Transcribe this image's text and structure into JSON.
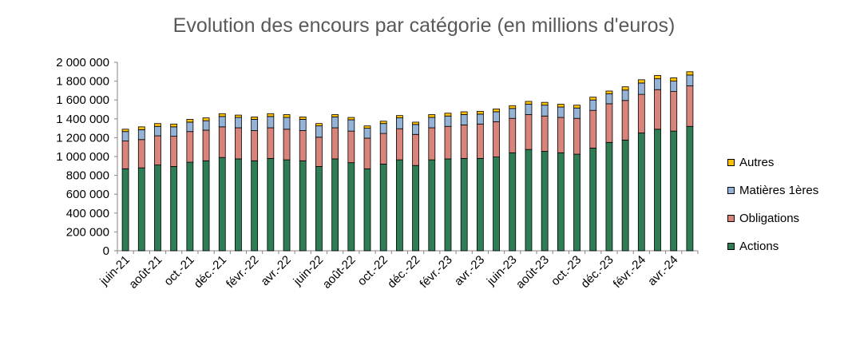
{
  "chart_data": {
    "type": "bar",
    "stacked": true,
    "title": "Evolution des encours par catégorie (en millions d'euros)",
    "xlabel": "",
    "ylabel": "",
    "ylim": [
      0,
      2000000
    ],
    "yticks": [
      "0",
      "200 000",
      "400 000",
      "600 000",
      "800 000",
      "1 000 000",
      "1 200 000",
      "1 400 000",
      "1 600 000",
      "1 800 000",
      "2 000 000"
    ],
    "xtick_labels": [
      "juin-21",
      "août-21",
      "oct.-21",
      "déc.-21",
      "févr.-22",
      "avr.-22",
      "juin-22",
      "août-22",
      "oct.-22",
      "déc.-22",
      "févr.-23",
      "avr.-23",
      "juin-23",
      "août-23",
      "oct.-23",
      "déc.-23",
      "févr.-24",
      "avr.-24"
    ],
    "categories": [
      "juin-21",
      "juil.-21",
      "août-21",
      "sept.-21",
      "oct.-21",
      "nov.-21",
      "déc.-21",
      "janv.-22",
      "févr.-22",
      "mars-22",
      "avr.-22",
      "mai-22",
      "juin-22",
      "juil.-22",
      "août-22",
      "sept.-22",
      "oct.-22",
      "nov.-22",
      "déc.-22",
      "janv.-23",
      "févr.-23",
      "mars-23",
      "avr.-23",
      "mai-23",
      "juin-23",
      "juil.-23",
      "août-23",
      "sept.-23",
      "oct.-23",
      "nov.-23",
      "déc.-23",
      "janv.-24",
      "févr.-24",
      "mars-24",
      "avr.-24",
      "mai-24"
    ],
    "legend_position": "right",
    "grid": false,
    "series": [
      {
        "name": "Actions",
        "color": "#2e7d55",
        "values": [
          870000,
          880000,
          910000,
          895000,
          940000,
          955000,
          990000,
          975000,
          955000,
          980000,
          965000,
          955000,
          895000,
          975000,
          935000,
          870000,
          920000,
          965000,
          905000,
          965000,
          975000,
          980000,
          980000,
          995000,
          1040000,
          1075000,
          1055000,
          1040000,
          1025000,
          1090000,
          1150000,
          1175000,
          1250000,
          1290000,
          1270000,
          1320000
        ]
      },
      {
        "name": "Obligations",
        "color": "#d9847a",
        "values": [
          295000,
          300000,
          310000,
          320000,
          325000,
          325000,
          325000,
          330000,
          320000,
          325000,
          325000,
          320000,
          310000,
          330000,
          335000,
          325000,
          325000,
          330000,
          330000,
          340000,
          345000,
          355000,
          365000,
          375000,
          365000,
          370000,
          375000,
          375000,
          380000,
          400000,
          410000,
          420000,
          410000,
          420000,
          420000,
          430000
        ]
      },
      {
        "name": "Matières 1ères",
        "color": "#95b3d7",
        "values": [
          100000,
          105000,
          100000,
          100000,
          100000,
          100000,
          110000,
          110000,
          120000,
          120000,
          125000,
          120000,
          120000,
          115000,
          120000,
          105000,
          105000,
          115000,
          105000,
          110000,
          110000,
          110000,
          105000,
          105000,
          105000,
          110000,
          115000,
          110000,
          110000,
          110000,
          105000,
          110000,
          120000,
          115000,
          110000,
          115000
        ]
      },
      {
        "name": "Autres",
        "color": "#ffc000",
        "values": [
          25000,
          30000,
          30000,
          30000,
          30000,
          30000,
          30000,
          25000,
          25000,
          30000,
          30000,
          25000,
          25000,
          25000,
          25000,
          25000,
          25000,
          25000,
          25000,
          30000,
          30000,
          30000,
          30000,
          30000,
          30000,
          30000,
          30000,
          30000,
          30000,
          30000,
          30000,
          35000,
          35000,
          35000,
          35000,
          35000
        ]
      }
    ]
  }
}
